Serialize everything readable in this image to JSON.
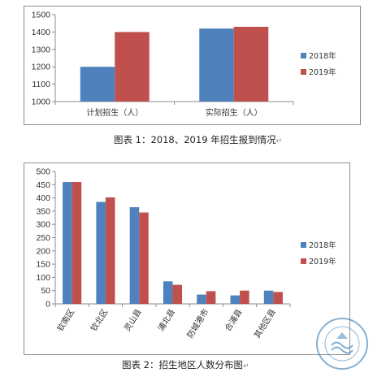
{
  "chart_data": [
    {
      "type": "bar",
      "categories": [
        "计划招生（人）",
        "实际招生（人）"
      ],
      "series": [
        {
          "name": "2018年",
          "values": [
            1200,
            1420
          ]
        },
        {
          "name": "2019年",
          "values": [
            1400,
            1430
          ]
        }
      ],
      "ylim": [
        1000,
        1500
      ],
      "yticks": [
        1000,
        1100,
        1200,
        1300,
        1400,
        1500
      ],
      "legend": "right",
      "grid": false,
      "colors": [
        "#4f81bd",
        "#c0504d"
      ]
    },
    {
      "type": "bar",
      "categories": [
        "钦南区",
        "钦北区",
        "灵山县",
        "浦北县",
        "防城港市",
        "合浦县",
        "其他区县"
      ],
      "series": [
        {
          "name": "2018年",
          "values": [
            460,
            385,
            365,
            85,
            35,
            32,
            50
          ]
        },
        {
          "name": "2019年",
          "values": [
            460,
            402,
            345,
            72,
            48,
            50,
            45
          ]
        }
      ],
      "ylim": [
        0,
        500
      ],
      "yticks": [
        0,
        50,
        100,
        150,
        200,
        250,
        300,
        350,
        400,
        450,
        500
      ],
      "legend": "right",
      "grid": false,
      "colors": [
        "#4f81bd",
        "#c0504d"
      ]
    }
  ],
  "captions": {
    "chart1": "图表 1：2018、2019 年招生报到情况",
    "chart2": "图表 2：招生地区人数分布图",
    "return_mark": "↵"
  },
  "stamp": {
    "icon": "school-seal-watermark",
    "color": "#1f6fb0"
  }
}
